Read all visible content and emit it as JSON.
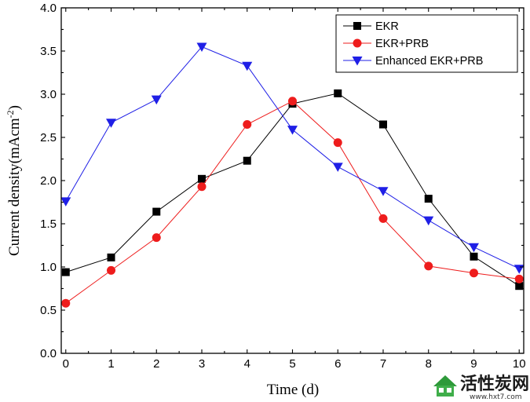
{
  "chart_data": {
    "type": "line",
    "x": [
      0,
      1,
      2,
      3,
      4,
      5,
      6,
      7,
      8,
      9,
      10
    ],
    "xlabel": "Time (d)",
    "ylabel": "Current density(mAcm",
    "ylabel_sup": "-2",
    "ylabel_end": ")",
    "xlim": [
      -0.1,
      10.1
    ],
    "ylim": [
      0,
      4.0
    ],
    "xticks": [
      "0",
      "1",
      "2",
      "3",
      "4",
      "5",
      "6",
      "7",
      "8",
      "9",
      "10"
    ],
    "yticks": [
      "0.0",
      "0.5",
      "1.0",
      "1.5",
      "2.0",
      "2.5",
      "3.0",
      "3.5",
      "4.0"
    ],
    "grid": false,
    "legend_position": "top-right",
    "series": [
      {
        "name": "EKR",
        "marker": "square",
        "color": "#000000",
        "values": [
          0.94,
          1.11,
          1.64,
          2.02,
          2.23,
          2.89,
          3.01,
          2.65,
          1.79,
          1.12,
          0.78
        ]
      },
      {
        "name": "EKR+PRB",
        "marker": "circle",
        "color": "#ee1c1c",
        "values": [
          0.58,
          0.96,
          1.34,
          1.93,
          2.65,
          2.92,
          2.44,
          1.56,
          1.01,
          0.93,
          0.86
        ]
      },
      {
        "name": "Enhanced EKR+PRB",
        "marker": "triangle-down",
        "color": "#1f1fe6",
        "values": [
          1.76,
          2.67,
          2.94,
          3.55,
          3.33,
          2.59,
          2.16,
          1.88,
          1.54,
          1.23,
          0.98
        ]
      }
    ]
  },
  "watermark": {
    "text": "活性炭网",
    "url": "www.hxt7.com",
    "icon": "house-logo-icon"
  }
}
